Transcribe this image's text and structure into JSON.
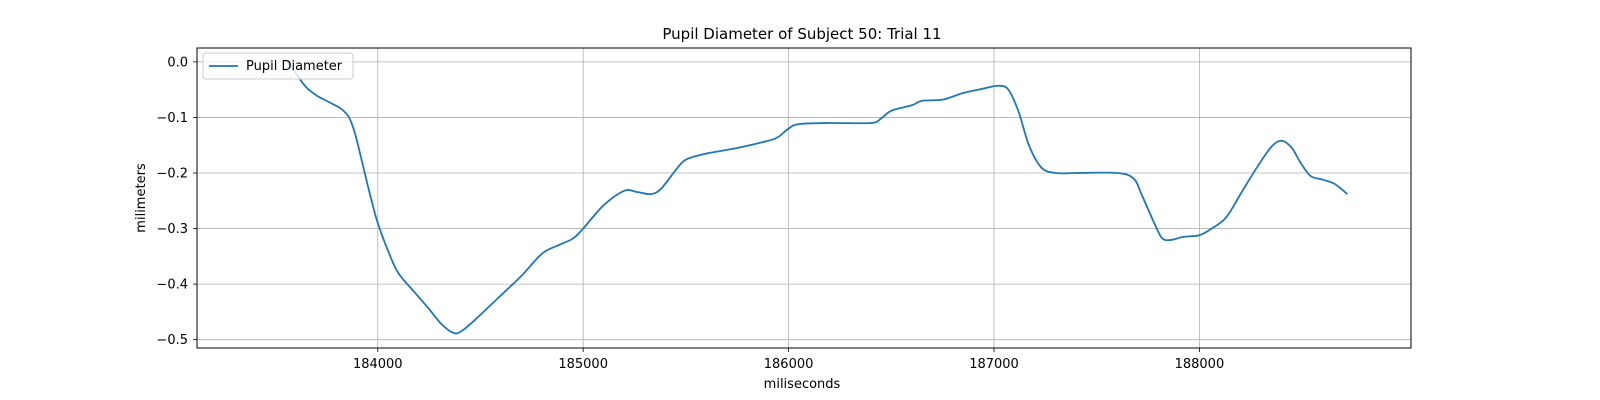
{
  "chart_data": {
    "type": "line",
    "title": "Pupil Diameter of Subject 50: Trial 11",
    "xlabel": "miliseconds",
    "ylabel": "milimeters",
    "xlim": [
      183120,
      189030
    ],
    "ylim": [
      -0.515,
      0.025
    ],
    "xticks": [
      184000,
      185000,
      186000,
      187000,
      188000
    ],
    "xtick_labels": [
      "184000",
      "185000",
      "186000",
      "187000",
      "188000"
    ],
    "yticks": [
      0.0,
      -0.1,
      -0.2,
      -0.3,
      -0.4,
      -0.5
    ],
    "ytick_labels": [
      "0.0",
      "−0.1",
      "−0.2",
      "−0.3",
      "−0.4",
      "−0.5"
    ],
    "grid": true,
    "legend_position": "top-left",
    "series": [
      {
        "name": "Pupil Diameter",
        "color": "#1f77b4",
        "points": [
          [
            183560,
            0.0
          ],
          [
            183600,
            -0.02
          ],
          [
            183650,
            -0.045
          ],
          [
            183700,
            -0.06
          ],
          [
            183760,
            -0.072
          ],
          [
            183820,
            -0.084
          ],
          [
            183860,
            -0.1
          ],
          [
            183890,
            -0.13
          ],
          [
            183930,
            -0.19
          ],
          [
            183970,
            -0.25
          ],
          [
            184000,
            -0.29
          ],
          [
            184050,
            -0.34
          ],
          [
            184100,
            -0.38
          ],
          [
            184180,
            -0.415
          ],
          [
            184250,
            -0.445
          ],
          [
            184310,
            -0.472
          ],
          [
            184370,
            -0.488
          ],
          [
            184410,
            -0.484
          ],
          [
            184480,
            -0.462
          ],
          [
            184600,
            -0.42
          ],
          [
            184700,
            -0.385
          ],
          [
            184800,
            -0.345
          ],
          [
            184880,
            -0.33
          ],
          [
            184950,
            -0.318
          ],
          [
            185000,
            -0.3
          ],
          [
            185100,
            -0.258
          ],
          [
            185200,
            -0.232
          ],
          [
            185260,
            -0.234
          ],
          [
            185330,
            -0.238
          ],
          [
            185380,
            -0.228
          ],
          [
            185450,
            -0.195
          ],
          [
            185500,
            -0.176
          ],
          [
            185600,
            -0.165
          ],
          [
            185750,
            -0.155
          ],
          [
            185900,
            -0.142
          ],
          [
            185950,
            -0.135
          ],
          [
            186000,
            -0.12
          ],
          [
            186050,
            -0.112
          ],
          [
            186200,
            -0.11
          ],
          [
            186400,
            -0.11
          ],
          [
            186450,
            -0.102
          ],
          [
            186500,
            -0.088
          ],
          [
            186600,
            -0.078
          ],
          [
            186650,
            -0.07
          ],
          [
            186750,
            -0.068
          ],
          [
            186850,
            -0.056
          ],
          [
            186950,
            -0.048
          ],
          [
            187020,
            -0.043
          ],
          [
            187070,
            -0.05
          ],
          [
            187120,
            -0.09
          ],
          [
            187170,
            -0.15
          ],
          [
            187230,
            -0.19
          ],
          [
            187300,
            -0.2
          ],
          [
            187400,
            -0.2
          ],
          [
            187600,
            -0.2
          ],
          [
            187680,
            -0.21
          ],
          [
            187720,
            -0.24
          ],
          [
            187780,
            -0.29
          ],
          [
            187820,
            -0.318
          ],
          [
            187870,
            -0.32
          ],
          [
            187920,
            -0.315
          ],
          [
            188000,
            -0.312
          ],
          [
            188060,
            -0.3
          ],
          [
            188130,
            -0.28
          ],
          [
            188200,
            -0.238
          ],
          [
            188280,
            -0.19
          ],
          [
            188350,
            -0.153
          ],
          [
            188400,
            -0.142
          ],
          [
            188450,
            -0.155
          ],
          [
            188490,
            -0.18
          ],
          [
            188540,
            -0.205
          ],
          [
            188600,
            -0.212
          ],
          [
            188660,
            -0.22
          ],
          [
            188720,
            -0.238
          ]
        ]
      }
    ]
  }
}
